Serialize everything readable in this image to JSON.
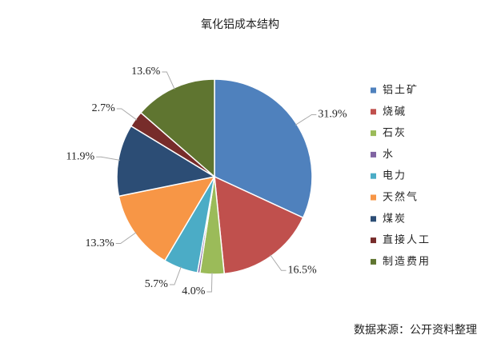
{
  "chart_data": {
    "type": "pie",
    "title": "氧化铝成本结构",
    "categories": [
      "铝土矿",
      "烧碱",
      "石灰",
      "水",
      "电力",
      "天然气",
      "煤炭",
      "直接人工",
      "制造费用"
    ],
    "values": [
      31.9,
      16.5,
      4.0,
      0.4,
      5.7,
      13.3,
      11.9,
      2.7,
      13.6
    ],
    "value_labels": [
      "31.9%",
      "16.5%",
      "4.0%",
      null,
      "5.7%",
      "13.3%",
      "11.9%",
      "2.7%",
      "13.6%"
    ],
    "colors": [
      "#4f81bd",
      "#c0504d",
      "#9bbb59",
      "#8064a2",
      "#4bacc6",
      "#f79646",
      "#2c4d75",
      "#772c2a",
      "#5f7530"
    ],
    "legend": "right",
    "source": "数据来源：公开资料整理"
  }
}
